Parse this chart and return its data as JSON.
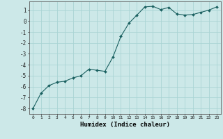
{
  "x": [
    0,
    1,
    2,
    3,
    4,
    5,
    6,
    7,
    8,
    9,
    10,
    11,
    12,
    13,
    14,
    15,
    16,
    17,
    18,
    19,
    20,
    21,
    22,
    23
  ],
  "y": [
    -8.0,
    -6.6,
    -5.9,
    -5.6,
    -5.5,
    -5.2,
    -5.0,
    -4.4,
    -4.5,
    -4.6,
    -3.3,
    -1.4,
    -0.2,
    0.55,
    1.3,
    1.35,
    1.05,
    1.25,
    0.65,
    0.55,
    0.6,
    0.8,
    1.0,
    1.3
  ],
  "xlabel": "Humidex (Indice chaleur)",
  "ylim": [
    -8.5,
    1.8
  ],
  "xlim": [
    -0.5,
    23.5
  ],
  "bg_color": "#cce8e8",
  "grid_color": "#aad4d4",
  "line_color": "#1a6060",
  "marker_color": "#1a6060",
  "yticks": [
    1,
    0,
    -1,
    -2,
    -3,
    -4,
    -5,
    -6,
    -7,
    -8
  ],
  "xticks": [
    0,
    1,
    2,
    3,
    4,
    5,
    6,
    7,
    8,
    9,
    10,
    11,
    12,
    13,
    14,
    15,
    16,
    17,
    18,
    19,
    20,
    21,
    22,
    23
  ]
}
